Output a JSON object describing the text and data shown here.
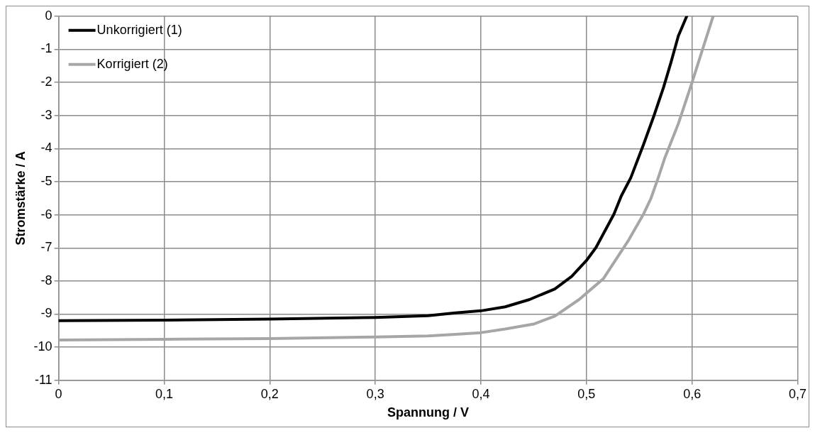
{
  "chart_data": {
    "type": "line",
    "xlabel": "Spannung / V",
    "ylabel": "Stromstärke / A",
    "xlim": [
      0,
      0.7
    ],
    "xticks": [
      0,
      {
        "value": 0.1,
        "label": "0,1"
      },
      {
        "value": 0.2,
        "label": "0,2"
      },
      {
        "value": 0.3,
        "label": "0,3"
      },
      {
        "value": 0.4,
        "label": "0,4"
      },
      {
        "value": 0.5,
        "label": "0,5"
      },
      {
        "value": 0.6,
        "label": "0,6"
      },
      {
        "value": 0.7,
        "label": "0,7"
      }
    ],
    "ylim": [
      -11,
      0
    ],
    "yticks": [
      -11,
      -10,
      -9,
      -8,
      -7,
      -6,
      -5,
      -4,
      -3,
      -2,
      -1,
      0
    ],
    "grid": true,
    "legend": "top left",
    "marker": "none",
    "line_style": "solid",
    "series": [
      {
        "name": "Unkorrigiert (1)",
        "color": "#000000",
        "x": [
          0,
          0.1,
          0.2,
          0.3,
          0.35,
          0.376,
          0.4,
          0.423,
          0.446,
          0.47,
          0.486,
          0.5,
          0.509,
          0.526,
          0.533,
          0.542,
          0.554,
          0.564,
          0.573,
          0.58,
          0.587,
          0.595
        ],
        "values": [
          -9.2,
          -9.18,
          -9.15,
          -9.1,
          -9.05,
          -8.96,
          -8.9,
          -8.78,
          -8.56,
          -8.24,
          -7.86,
          -7.38,
          -6.99,
          -5.98,
          -5.43,
          -4.88,
          -3.88,
          -3.0,
          -2.15,
          -1.4,
          -0.6,
          0
        ]
      },
      {
        "name": "Korrigiert (2)",
        "color": "#a6a6a6",
        "x": [
          0,
          0.1,
          0.2,
          0.3,
          0.35,
          0.376,
          0.4,
          0.423,
          0.45,
          0.47,
          0.493,
          0.516,
          0.54,
          0.554,
          0.561,
          0.568,
          0.574,
          0.587,
          0.6,
          0.61,
          0.62
        ],
        "values": [
          -9.78,
          -9.76,
          -9.74,
          -9.69,
          -9.66,
          -9.61,
          -9.56,
          -9.45,
          -9.3,
          -9.06,
          -8.56,
          -7.93,
          -6.76,
          -5.98,
          -5.51,
          -4.88,
          -4.3,
          -3.25,
          -2.0,
          -1.0,
          0
        ]
      }
    ]
  }
}
